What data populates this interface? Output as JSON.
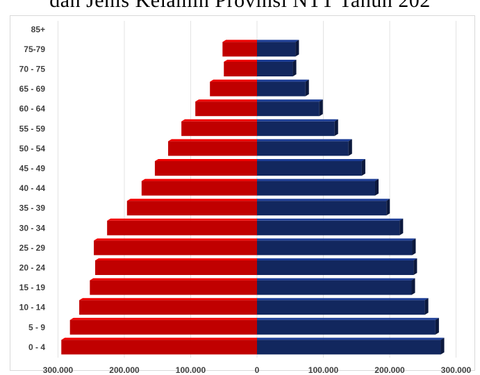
{
  "header": {
    "title": "dan Jenis Kelamin Provinsi NTT Tahun 202"
  },
  "colors": {
    "male": "#c00000",
    "female": "#12275e",
    "grid": "#e3e3e3"
  },
  "chart_data": {
    "type": "bar",
    "orientation": "horizontal",
    "layout": "population-pyramid",
    "categories": [
      "0 - 4",
      "5 - 9",
      "10 - 14",
      "15 - 19",
      "20 - 24",
      "25 - 29",
      "30 - 34",
      "35 - 39",
      "40 - 44",
      "45 - 49",
      "50 - 54",
      "55 - 59",
      "60 - 64",
      "65 - 69",
      "70 - 75",
      "75-79",
      "85+"
    ],
    "series": [
      {
        "side": "left",
        "values": [
          295000,
          282000,
          268000,
          252000,
          244000,
          246000,
          226000,
          196000,
          174000,
          154000,
          134000,
          114000,
          93000,
          71000,
          50000,
          52000,
          0
        ]
      },
      {
        "side": "right",
        "values": [
          277000,
          269000,
          253000,
          233000,
          236000,
          234000,
          215000,
          195000,
          178000,
          158000,
          138000,
          117000,
          94000,
          73000,
          54000,
          58000,
          0
        ]
      }
    ],
    "x_ticks": [
      "300.000",
      "200.000",
      "100.000",
      "0",
      "100.000",
      "200.000",
      "300.000"
    ],
    "xlim": [
      -300000,
      300000
    ],
    "grid": true,
    "legend": "none"
  }
}
